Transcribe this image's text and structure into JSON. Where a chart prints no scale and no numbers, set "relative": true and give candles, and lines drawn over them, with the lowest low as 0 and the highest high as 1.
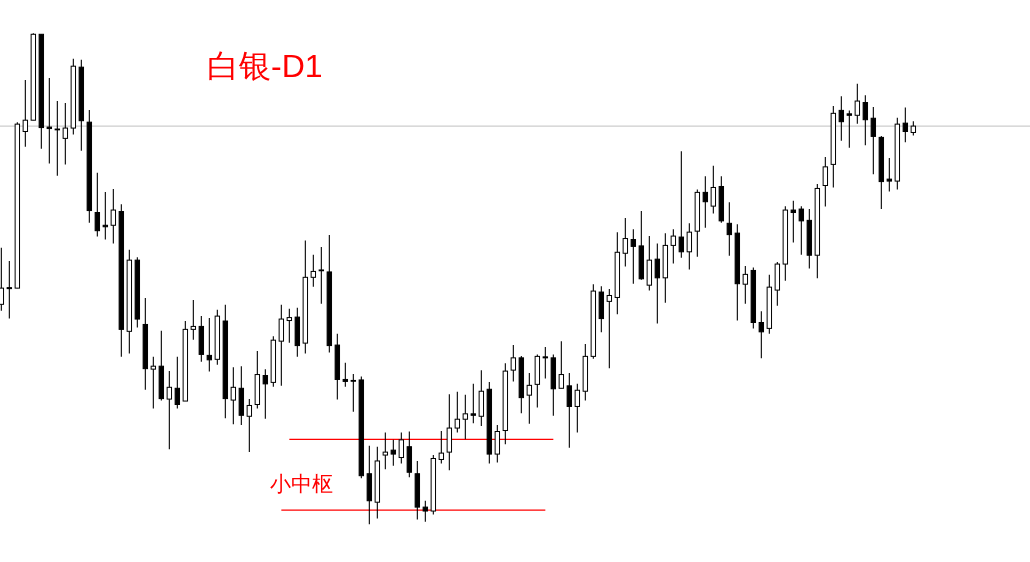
{
  "chart_data": {
    "type": "candlestick",
    "title": "白银-D1",
    "relative": true,
    "color": "#000000",
    "categories": [
      null,
      null,
      null,
      null,
      null,
      null,
      null,
      null,
      null,
      null,
      null,
      null,
      null,
      null,
      null,
      null,
      null,
      null,
      null,
      null,
      null,
      null,
      null,
      null,
      null,
      null,
      null,
      null,
      null,
      null,
      null,
      null,
      null,
      null,
      null,
      null,
      null,
      null,
      null,
      null,
      null,
      null,
      null,
      null,
      null,
      null,
      null,
      null,
      null,
      null,
      null,
      null,
      null,
      null,
      null,
      null,
      null,
      null,
      null,
      null,
      null,
      null,
      null,
      null,
      null,
      null,
      null,
      null,
      null,
      null,
      null,
      null,
      null,
      null,
      null,
      null,
      null,
      null,
      null,
      null,
      null,
      null,
      null,
      null,
      null,
      null,
      null,
      null,
      null,
      null,
      null,
      null,
      null,
      null,
      null,
      null,
      null,
      null,
      null,
      null,
      null,
      null,
      null,
      null,
      null,
      null,
      null,
      null,
      null,
      null,
      null,
      null,
      null,
      null,
      null
    ],
    "ohlc": [
      [
        0.448,
        0.563,
        0.435,
        0.481
      ],
      [
        0.482,
        0.536,
        0.419,
        0.48
      ],
      [
        0.481,
        0.819,
        0.481,
        0.815
      ],
      [
        0.8,
        0.905,
        0.769,
        0.823
      ],
      [
        0.823,
        1.0,
        0.823,
        0.998
      ],
      [
        0.998,
        0.998,
        0.765,
        0.808
      ],
      [
        0.809,
        0.909,
        0.735,
        0.806
      ],
      [
        0.805,
        0.862,
        0.71,
        0.804
      ],
      [
        0.786,
        0.858,
        0.733,
        0.807
      ],
      [
        0.807,
        0.948,
        0.794,
        0.933
      ],
      [
        0.931,
        0.946,
        0.761,
        0.822
      ],
      [
        0.819,
        0.844,
        0.614,
        0.639
      ],
      [
        0.635,
        0.716,
        0.586,
        0.598
      ],
      [
        0.609,
        0.677,
        0.58,
        0.606
      ],
      [
        0.609,
        0.683,
        0.572,
        0.64
      ],
      [
        0.637,
        0.652,
        0.341,
        0.397
      ],
      [
        0.393,
        0.559,
        0.348,
        0.538
      ],
      [
        0.538,
        0.544,
        0.401,
        0.418
      ],
      [
        0.407,
        0.461,
        0.274,
        0.317
      ],
      [
        0.316,
        0.341,
        0.236,
        0.322
      ],
      [
        0.322,
        0.394,
        0.252,
        0.256
      ],
      [
        0.255,
        0.312,
        0.153,
        0.279
      ],
      [
        0.277,
        0.341,
        0.236,
        0.244
      ],
      [
        0.251,
        0.414,
        0.251,
        0.397
      ],
      [
        0.397,
        0.457,
        0.376,
        0.403
      ],
      [
        0.403,
        0.424,
        0.331,
        0.346
      ],
      [
        0.344,
        0.42,
        0.311,
        0.335
      ],
      [
        0.336,
        0.437,
        0.325,
        0.424
      ],
      [
        0.414,
        0.447,
        0.216,
        0.256
      ],
      [
        0.253,
        0.32,
        0.204,
        0.279
      ],
      [
        0.277,
        0.322,
        0.202,
        0.222
      ],
      [
        0.22,
        0.255,
        0.147,
        0.242
      ],
      [
        0.244,
        0.353,
        0.236,
        0.305
      ],
      [
        0.303,
        0.316,
        0.215,
        0.286
      ],
      [
        0.289,
        0.383,
        0.28,
        0.375
      ],
      [
        0.373,
        0.447,
        0.282,
        0.418
      ],
      [
        0.415,
        0.439,
        0.37,
        0.421
      ],
      [
        0.422,
        0.441,
        0.341,
        0.364
      ],
      [
        0.369,
        0.578,
        0.348,
        0.503
      ],
      [
        0.503,
        0.549,
        0.484,
        0.515
      ],
      [
        0.518,
        0.565,
        0.449,
        0.517
      ],
      [
        0.514,
        0.589,
        0.35,
        0.364
      ],
      [
        0.365,
        0.388,
        0.254,
        0.295
      ],
      [
        0.295,
        0.329,
        0.28,
        0.291
      ],
      [
        0.293,
        0.306,
        0.229,
        0.292
      ],
      [
        0.294,
        0.301,
        0.094,
        0.099
      ],
      [
        0.103,
        0.16,
        0,
        0.048
      ],
      [
        0.045,
        0.158,
        0.012,
        0.129
      ],
      [
        0.141,
        0.187,
        0.112,
        0.147
      ],
      [
        0.151,
        0.172,
        0.119,
        0.143
      ],
      [
        0.136,
        0.187,
        0.124,
        0.172
      ],
      [
        0.158,
        0.189,
        0.096,
        0.106
      ],
      [
        0.103,
        0.129,
        0.01,
        0.035
      ],
      [
        0.035,
        0.048,
        0.005,
        0.027
      ],
      [
        0.027,
        0.141,
        0.02,
        0.134
      ],
      [
        0.132,
        0.19,
        0.124,
        0.145
      ],
      [
        0.147,
        0.265,
        0.11,
        0.196
      ],
      [
        0.196,
        0.27,
        0.187,
        0.214
      ],
      [
        0.214,
        0.264,
        0.173,
        0.225
      ],
      [
        0.225,
        0.286,
        0.206,
        0.222
      ],
      [
        0.22,
        0.314,
        0.2,
        0.271
      ],
      [
        0.275,
        0.29,
        0.124,
        0.143
      ],
      [
        0.143,
        0.202,
        0.126,
        0.189
      ],
      [
        0.191,
        0.328,
        0.163,
        0.312
      ],
      [
        0.314,
        0.365,
        0.291,
        0.339
      ],
      [
        0.339,
        0.343,
        0.226,
        0.258
      ],
      [
        0.263,
        0.308,
        0.205,
        0.283
      ],
      [
        0.285,
        0.346,
        0.238,
        0.342
      ],
      [
        0.341,
        0.361,
        0.297,
        0.339
      ],
      [
        0.339,
        0.346,
        0.221,
        0.276
      ],
      [
        0.277,
        0.373,
        0.277,
        0.305
      ],
      [
        0.282,
        0.308,
        0.156,
        0.24
      ],
      [
        0.24,
        0.286,
        0.187,
        0.273
      ],
      [
        0.271,
        0.367,
        0.252,
        0.342
      ],
      [
        0.342,
        0.489,
        0.337,
        0.475
      ],
      [
        0.473,
        0.485,
        0.391,
        0.419
      ],
      [
        0.454,
        0.479,
        0.318,
        0.466
      ],
      [
        0.462,
        0.595,
        0.428,
        0.554
      ],
      [
        0.552,
        0.624,
        0.525,
        0.582
      ],
      [
        0.58,
        0.601,
        0.49,
        0.566
      ],
      [
        0.567,
        0.638,
        0.498,
        0.5
      ],
      [
        0.487,
        0.587,
        0.476,
        0.538
      ],
      [
        0.54,
        0.572,
        0.409,
        0.502
      ],
      [
        0.502,
        0.593,
        0.451,
        0.568
      ],
      [
        0.568,
        0.601,
        0.531,
        0.587
      ],
      [
        0.585,
        0.76,
        0.543,
        0.555
      ],
      [
        0.555,
        0.613,
        0.519,
        0.595
      ],
      [
        0.597,
        0.682,
        0.545,
        0.676
      ],
      [
        0.676,
        0.709,
        0.604,
        0.657
      ],
      [
        0.648,
        0.73,
        0.633,
        0.686
      ],
      [
        0.688,
        0.709,
        0.614,
        0.618
      ],
      [
        0.613,
        0.656,
        0.547,
        0.59
      ],
      [
        0.593,
        0.611,
        0.415,
        0.49
      ],
      [
        0.489,
        0.526,
        0.449,
        0.509
      ],
      [
        0.517,
        0.523,
        0.399,
        0.411
      ],
      [
        0.411,
        0.434,
        0.338,
        0.392
      ],
      [
        0.399,
        0.508,
        0.388,
        0.483
      ],
      [
        0.477,
        0.534,
        0.445,
        0.53
      ],
      [
        0.53,
        0.648,
        0.496,
        0.64
      ],
      [
        0.64,
        0.659,
        0.574,
        0.635
      ],
      [
        0.642,
        0.648,
        0.549,
        0.618
      ],
      [
        0.619,
        0.642,
        0.521,
        0.548
      ],
      [
        0.548,
        0.693,
        0.501,
        0.684
      ],
      [
        0.69,
        0.748,
        0.647,
        0.728
      ],
      [
        0.733,
        0.852,
        0.686,
        0.837
      ],
      [
        0.843,
        0.872,
        0.781,
        0.82
      ],
      [
        0.836,
        0.843,
        0.767,
        0.833
      ],
      [
        0.833,
        0.897,
        0.816,
        0.862
      ],
      [
        0.859,
        0.874,
        0.772,
        0.824
      ],
      [
        0.827,
        0.85,
        0.713,
        0.79
      ],
      [
        0.788,
        0.791,
        0.642,
        0.698
      ],
      [
        0.703,
        0.746,
        0.678,
        0.699
      ],
      [
        0.699,
        0.828,
        0.682,
        0.815
      ],
      [
        0.817,
        0.849,
        0.778,
        0.8
      ],
      [
        0.798,
        0.821,
        0.792,
        0.811
      ]
    ],
    "series": [
      {
        "type": "line",
        "color": "#ff0000",
        "values": [
          null,
          null,
          null,
          null,
          null,
          null,
          null,
          null,
          null,
          null,
          null,
          null,
          null,
          null,
          null,
          null,
          null,
          null,
          null,
          null,
          null,
          null,
          null,
          null,
          null,
          null,
          null,
          null,
          null,
          null,
          null,
          null,
          null,
          null,
          null,
          null,
          0.173,
          0.173,
          0.173,
          0.173,
          0.173,
          0.173,
          0.173,
          0.173,
          0.173,
          0.173,
          0.173,
          0.173,
          0.173,
          0.173,
          0.173,
          0.173,
          0.173,
          0.173,
          0.173,
          0.173,
          0.173,
          0.173,
          0.173,
          0.173,
          0.173,
          0.173,
          0.173,
          0.173,
          0.173,
          0.173,
          0.173,
          0.173,
          0.173,
          0.173,
          null,
          null,
          null,
          null,
          null,
          null,
          null,
          null,
          null,
          null,
          null,
          null,
          null,
          null,
          null,
          null,
          null,
          null,
          null,
          null,
          null,
          null,
          null,
          null,
          null,
          null,
          null,
          null,
          null,
          null,
          null,
          null,
          null,
          null,
          null,
          null,
          null,
          null,
          null,
          null,
          null,
          null,
          null,
          null,
          null
        ]
      },
      {
        "type": "line",
        "color": "#ff0000",
        "values": [
          null,
          null,
          null,
          null,
          null,
          null,
          null,
          null,
          null,
          null,
          null,
          null,
          null,
          null,
          null,
          null,
          null,
          null,
          null,
          null,
          null,
          null,
          null,
          null,
          null,
          null,
          null,
          null,
          null,
          null,
          null,
          null,
          null,
          null,
          null,
          0.029,
          0.029,
          0.029,
          0.029,
          0.029,
          0.029,
          0.029,
          0.029,
          0.029,
          0.029,
          0.029,
          0.029,
          0.029,
          0.029,
          0.029,
          0.029,
          0.029,
          0.029,
          0.029,
          0.029,
          0.029,
          0.029,
          0.029,
          0.029,
          0.029,
          0.029,
          0.029,
          0.029,
          0.029,
          0.029,
          0.029,
          0.029,
          0.029,
          0.029,
          null,
          null,
          null,
          null,
          null,
          null,
          null,
          null,
          null,
          null,
          null,
          null,
          null,
          null,
          null,
          null,
          null,
          null,
          null,
          null,
          null,
          null,
          null,
          null,
          null,
          null,
          null,
          null,
          null,
          null,
          null,
          null,
          null,
          null,
          null,
          null,
          null,
          null,
          null,
          null,
          null,
          null,
          null,
          null,
          null,
          null
        ]
      }
    ],
    "ref_lines": [
      {
        "axis": "y",
        "value": 0.811,
        "color": "#c0c0c0"
      }
    ],
    "annotations": [
      "小中枢"
    ]
  }
}
